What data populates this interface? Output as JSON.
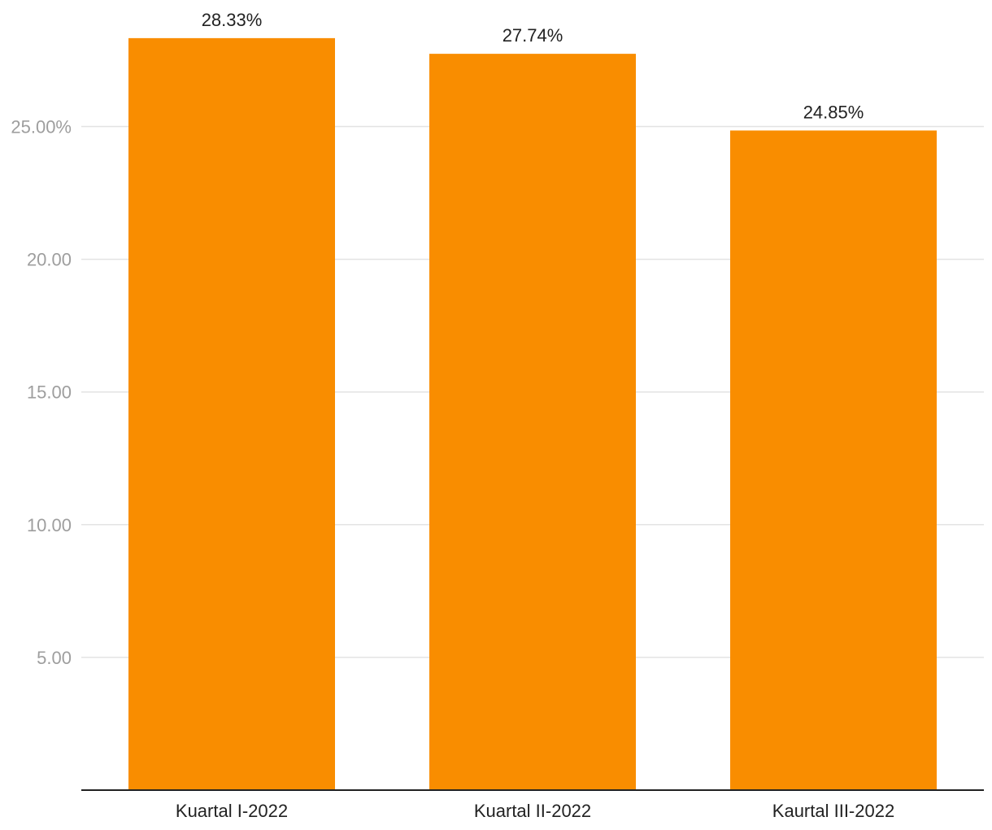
{
  "chart_data": {
    "type": "bar",
    "categories": [
      "Kuartal I-2022",
      "Kuartal II-2022",
      "Kaurtal III-2022"
    ],
    "values": [
      28.33,
      27.74,
      24.85
    ],
    "data_labels": [
      "28.33%",
      "27.74%",
      "24.85%"
    ],
    "y_ticks": [
      5,
      10,
      15,
      20,
      25
    ],
    "y_tick_labels": [
      "5.00",
      "10.00",
      "15.00",
      "20.00",
      "25.00%"
    ],
    "ylim": [
      0,
      29.8
    ],
    "title": "",
    "xlabel": "",
    "ylabel": "",
    "grid": true,
    "legend": "none",
    "colors": {
      "bar": "#F98D00",
      "gridline": "#E3E3E3",
      "baseline": "#222222",
      "tick_text": "#9E9E9E",
      "label_text": "#222222"
    }
  }
}
